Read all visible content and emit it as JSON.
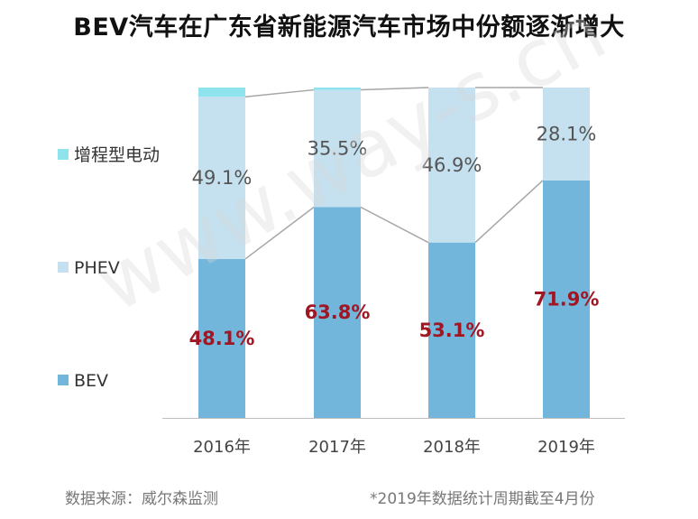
{
  "title": "BEV汽车在广东省新能源汽车市场中份额逐渐增大",
  "watermark": "www.way-s.cn",
  "source": "数据来源：威尔森监测",
  "note": "*2019年数据统计周期截至4月份",
  "colors": {
    "bev": "#72b6db",
    "phev": "#c5e1ef",
    "erev": "#8fe3ec",
    "bev_label": "#a01622",
    "phev_label": "#555555",
    "connector": "#a6a6a6"
  },
  "chart_data": {
    "type": "bar",
    "stacked": true,
    "percent": true,
    "categories": [
      "2016年",
      "2017年",
      "2018年",
      "2019年"
    ],
    "series": [
      {
        "name": "BEV",
        "values": [
          48.1,
          63.8,
          53.1,
          71.9
        ],
        "labels": [
          "48.1%",
          "63.8%",
          "53.1%",
          "71.9%"
        ]
      },
      {
        "name": "PHEV",
        "values": [
          49.1,
          35.5,
          46.9,
          28.1
        ],
        "labels": [
          "49.1%",
          "35.5%",
          "46.9%",
          "28.1%"
        ]
      },
      {
        "name": "增程型电动",
        "values": [
          2.8,
          0.7,
          0.0,
          0.0
        ],
        "labels": []
      }
    ],
    "legend": [
      "增程型电动",
      "PHEV",
      "BEV"
    ],
    "ylim": [
      0,
      100
    ],
    "grid": false
  }
}
